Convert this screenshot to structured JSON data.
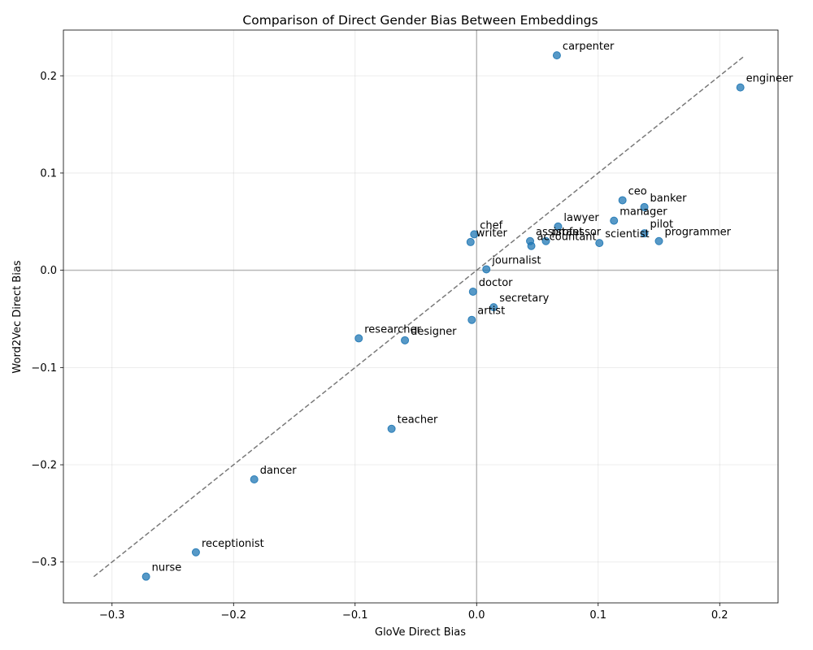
{
  "chart_data": {
    "type": "scatter",
    "title": "Comparison of Direct Gender Bias Between Embeddings",
    "xlabel": "GloVe Direct Bias",
    "ylabel": "Word2Vec Direct Bias",
    "xlim": [
      -0.34,
      0.248
    ],
    "ylim": [
      -0.342,
      0.247
    ],
    "xticks": [
      -0.3,
      -0.2,
      -0.1,
      0.0,
      0.1,
      0.2
    ],
    "xtick_labels": [
      "−0.3",
      "−0.2",
      "−0.1",
      "0.0",
      "0.1",
      "0.2"
    ],
    "yticks": [
      -0.3,
      -0.2,
      -0.1,
      0.0,
      0.1,
      0.2
    ],
    "ytick_labels": [
      "−0.3",
      "−0.2",
      "−0.1",
      "0.0",
      "0.1",
      "0.2"
    ],
    "grid": true,
    "reference_lines": {
      "x_zero": true,
      "y_zero": true,
      "diagonal": [
        -0.315,
        0.22
      ]
    },
    "points": [
      {
        "label": "carpenter",
        "x": 0.066,
        "y": 0.221
      },
      {
        "label": "engineer",
        "x": 0.217,
        "y": 0.188
      },
      {
        "label": "ceo",
        "x": 0.12,
        "y": 0.072
      },
      {
        "label": "banker",
        "x": 0.138,
        "y": 0.065
      },
      {
        "label": "manager",
        "x": 0.113,
        "y": 0.051
      },
      {
        "label": "lawyer",
        "x": 0.067,
        "y": 0.045
      },
      {
        "label": "pilot",
        "x": 0.138,
        "y": 0.038
      },
      {
        "label": "programmer",
        "x": 0.15,
        "y": 0.03
      },
      {
        "label": "chef",
        "x": -0.002,
        "y": 0.037
      },
      {
        "label": "writer",
        "x": -0.005,
        "y": 0.029
      },
      {
        "label": "assistant",
        "x": 0.044,
        "y": 0.03
      },
      {
        "label": "professor",
        "x": 0.057,
        "y": 0.03
      },
      {
        "label": "accountant",
        "x": 0.045,
        "y": 0.025
      },
      {
        "label": "scientist",
        "x": 0.101,
        "y": 0.028
      },
      {
        "label": "journalist",
        "x": 0.008,
        "y": 0.001
      },
      {
        "label": "doctor",
        "x": -0.003,
        "y": -0.022
      },
      {
        "label": "secretary",
        "x": 0.014,
        "y": -0.038
      },
      {
        "label": "artist",
        "x": -0.004,
        "y": -0.051
      },
      {
        "label": "researcher",
        "x": -0.097,
        "y": -0.07
      },
      {
        "label": "designer",
        "x": -0.059,
        "y": -0.072
      },
      {
        "label": "teacher",
        "x": -0.07,
        "y": -0.163
      },
      {
        "label": "dancer",
        "x": -0.183,
        "y": -0.215
      },
      {
        "label": "receptionist",
        "x": -0.231,
        "y": -0.29
      },
      {
        "label": "nurse",
        "x": -0.272,
        "y": -0.315
      }
    ]
  }
}
